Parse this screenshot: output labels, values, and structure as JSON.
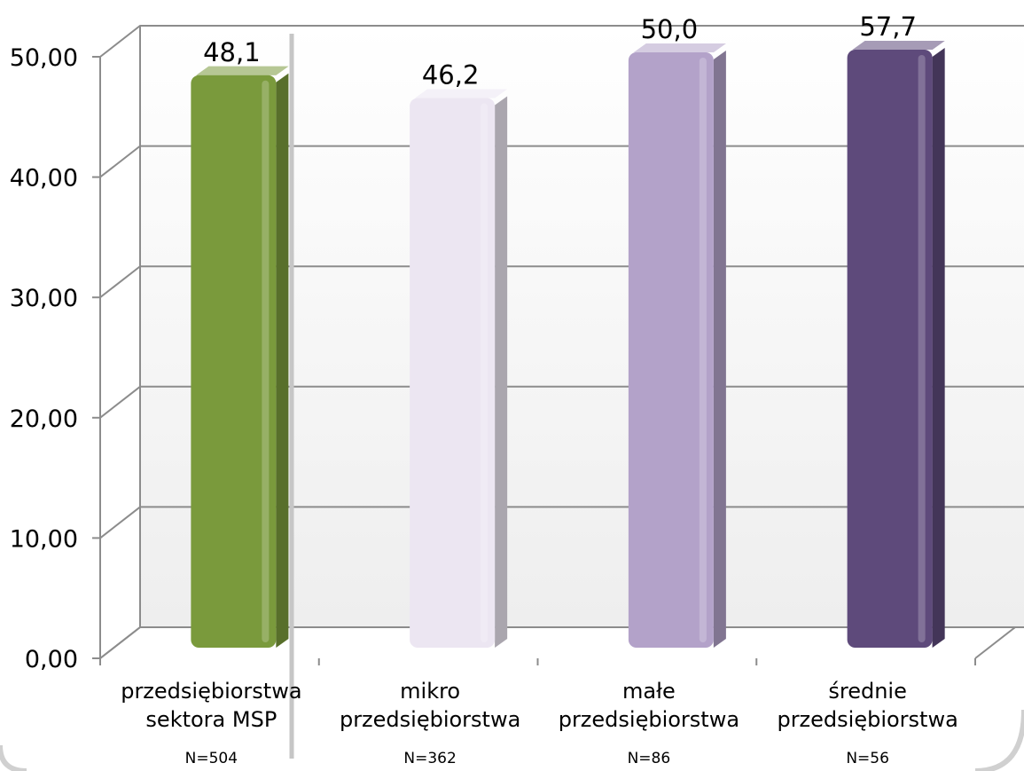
{
  "chart_data": {
    "type": "bar",
    "title": "",
    "xlabel": "",
    "ylabel": "",
    "ylim": [
      0,
      50
    ],
    "yticks": [
      "0,00",
      "10,00",
      "20,00",
      "30,00",
      "40,00",
      "50,00"
    ],
    "grid": true,
    "legend": "none",
    "categories": [
      {
        "label_lines": [
          "przedsiębiorstwa",
          "sektora MSP"
        ],
        "n": "N=504"
      },
      {
        "label_lines": [
          "mikro",
          "przedsiębiorstwa"
        ],
        "n": "N=362"
      },
      {
        "label_lines": [
          "małe",
          "przedsiębiorstwa"
        ],
        "n": "N=86"
      },
      {
        "label_lines": [
          "średnie",
          "przedsiębiorstwa"
        ],
        "n": "N=56"
      }
    ],
    "values": [
      48.1,
      46.2,
      50.0,
      57.7
    ],
    "value_labels": [
      "48,1",
      "46,2",
      "50,0",
      "57,7"
    ],
    "colors": [
      "#7a9a3c",
      "#ece6f2",
      "#b3a2c9",
      "#5e4a7b"
    ]
  }
}
